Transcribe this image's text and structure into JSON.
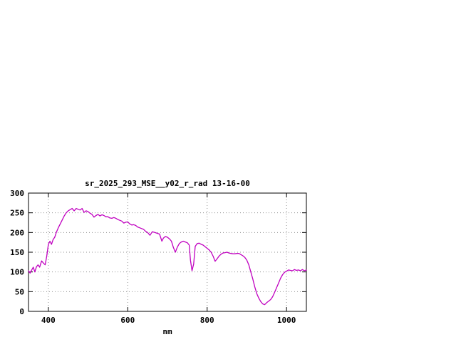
{
  "chart_data": {
    "type": "line",
    "title": "sr_2025_293_MSE__y02_r_rad 13-16-00",
    "xlabel": "nm",
    "ylabel": "",
    "xlim": [
      350,
      1050
    ],
    "ylim": [
      0,
      300
    ],
    "x_ticks": [
      400,
      600,
      800,
      1000
    ],
    "y_ticks": [
      0,
      50,
      100,
      150,
      200,
      250,
      300
    ],
    "grid": true,
    "legend_position": "none",
    "line_color": "#c000c0",
    "series": [
      {
        "name": "sr_2025_293_MSE__y02_r_rad",
        "points": [
          [
            350,
            103
          ],
          [
            354,
            97
          ],
          [
            358,
            105
          ],
          [
            362,
            112
          ],
          [
            366,
            100
          ],
          [
            370,
            113
          ],
          [
            374,
            118
          ],
          [
            378,
            112
          ],
          [
            383,
            128
          ],
          [
            388,
            122
          ],
          [
            392,
            118
          ],
          [
            396,
            140
          ],
          [
            400,
            170
          ],
          [
            404,
            178
          ],
          [
            408,
            170
          ],
          [
            412,
            182
          ],
          [
            416,
            188
          ],
          [
            420,
            200
          ],
          [
            425,
            212
          ],
          [
            430,
            222
          ],
          [
            435,
            232
          ],
          [
            440,
            242
          ],
          [
            445,
            250
          ],
          [
            450,
            255
          ],
          [
            455,
            258
          ],
          [
            460,
            261
          ],
          [
            465,
            255
          ],
          [
            470,
            261
          ],
          [
            475,
            259
          ],
          [
            480,
            257
          ],
          [
            485,
            261
          ],
          [
            490,
            251
          ],
          [
            495,
            255
          ],
          [
            500,
            253
          ],
          [
            505,
            249
          ],
          [
            510,
            246
          ],
          [
            515,
            239
          ],
          [
            520,
            243
          ],
          [
            525,
            246
          ],
          [
            530,
            242
          ],
          [
            535,
            245
          ],
          [
            540,
            243
          ],
          [
            545,
            240
          ],
          [
            550,
            240
          ],
          [
            555,
            237
          ],
          [
            560,
            236
          ],
          [
            565,
            238
          ],
          [
            570,
            236
          ],
          [
            575,
            233
          ],
          [
            580,
            231
          ],
          [
            585,
            229
          ],
          [
            590,
            224
          ],
          [
            595,
            226
          ],
          [
            600,
            227
          ],
          [
            605,
            222
          ],
          [
            610,
            219
          ],
          [
            615,
            220
          ],
          [
            620,
            218
          ],
          [
            625,
            214
          ],
          [
            630,
            212
          ],
          [
            635,
            210
          ],
          [
            640,
            208
          ],
          [
            645,
            203
          ],
          [
            650,
            200
          ],
          [
            656,
            193
          ],
          [
            662,
            202
          ],
          [
            668,
            200
          ],
          [
            674,
            198
          ],
          [
            680,
            196
          ],
          [
            686,
            178
          ],
          [
            690,
            186
          ],
          [
            695,
            190
          ],
          [
            700,
            188
          ],
          [
            705,
            184
          ],
          [
            710,
            178
          ],
          [
            715,
            162
          ],
          [
            720,
            150
          ],
          [
            725,
            163
          ],
          [
            730,
            172
          ],
          [
            735,
            176
          ],
          [
            740,
            178
          ],
          [
            745,
            176
          ],
          [
            750,
            174
          ],
          [
            755,
            168
          ],
          [
            758,
            130
          ],
          [
            762,
            103
          ],
          [
            766,
            120
          ],
          [
            770,
            165
          ],
          [
            775,
            172
          ],
          [
            780,
            173
          ],
          [
            785,
            170
          ],
          [
            790,
            168
          ],
          [
            795,
            164
          ],
          [
            800,
            160
          ],
          [
            805,
            156
          ],
          [
            810,
            150
          ],
          [
            815,
            140
          ],
          [
            820,
            127
          ],
          [
            825,
            133
          ],
          [
            830,
            140
          ],
          [
            835,
            145
          ],
          [
            840,
            148
          ],
          [
            845,
            149
          ],
          [
            850,
            150
          ],
          [
            855,
            148
          ],
          [
            860,
            147
          ],
          [
            865,
            146
          ],
          [
            870,
            146
          ],
          [
            875,
            147
          ],
          [
            880,
            147
          ],
          [
            885,
            144
          ],
          [
            890,
            141
          ],
          [
            895,
            137
          ],
          [
            900,
            130
          ],
          [
            905,
            118
          ],
          [
            910,
            100
          ],
          [
            915,
            82
          ],
          [
            920,
            62
          ],
          [
            925,
            45
          ],
          [
            930,
            34
          ],
          [
            935,
            25
          ],
          [
            940,
            19
          ],
          [
            945,
            17
          ],
          [
            950,
            22
          ],
          [
            955,
            26
          ],
          [
            960,
            30
          ],
          [
            965,
            37
          ],
          [
            970,
            48
          ],
          [
            975,
            60
          ],
          [
            980,
            72
          ],
          [
            985,
            84
          ],
          [
            990,
            93
          ],
          [
            995,
            99
          ],
          [
            1000,
            102
          ],
          [
            1005,
            105
          ],
          [
            1010,
            104
          ],
          [
            1015,
            103
          ],
          [
            1020,
            106
          ],
          [
            1025,
            104
          ],
          [
            1030,
            105
          ],
          [
            1035,
            103
          ],
          [
            1040,
            106
          ],
          [
            1045,
            103
          ],
          [
            1050,
            105
          ]
        ]
      }
    ],
    "colors": {
      "background": "#ffffff",
      "border": "#000000",
      "grid": "#909090",
      "text": "#000000"
    }
  }
}
